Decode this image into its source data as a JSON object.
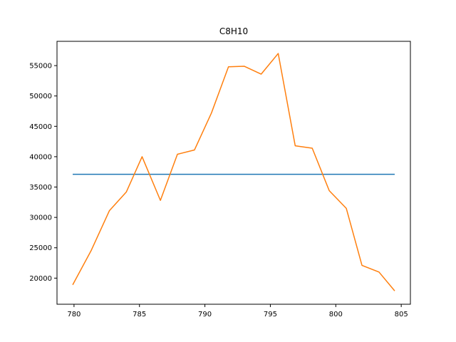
{
  "chart_data": {
    "type": "line",
    "title": "C8H10",
    "xlabel": "",
    "ylabel": "",
    "xlim": [
      778.7,
      805.7
    ],
    "ylim": [
      15700,
      59000
    ],
    "xticks": [
      780,
      785,
      790,
      795,
      800,
      805
    ],
    "yticks": [
      20000,
      25000,
      30000,
      35000,
      40000,
      45000,
      50000,
      55000
    ],
    "grid": false,
    "series": [
      {
        "color": "#1f77b4",
        "x": [
          779.9,
          804.5
        ],
        "y": [
          37100,
          37100
        ]
      },
      {
        "color": "#ff7f0e",
        "x": [
          779.9,
          781.3,
          782.7,
          784.0,
          785.2,
          786.6,
          787.9,
          789.2,
          790.5,
          791.8,
          793.0,
          794.3,
          795.6,
          796.9,
          798.2,
          799.5,
          800.8,
          802.0,
          803.3,
          804.5
        ],
        "y": [
          18900,
          24500,
          31100,
          34200,
          40000,
          32800,
          40400,
          41100,
          47200,
          54800,
          54900,
          53600,
          57000,
          41800,
          41400,
          34400,
          31500,
          22100,
          21000,
          17900
        ]
      }
    ]
  }
}
